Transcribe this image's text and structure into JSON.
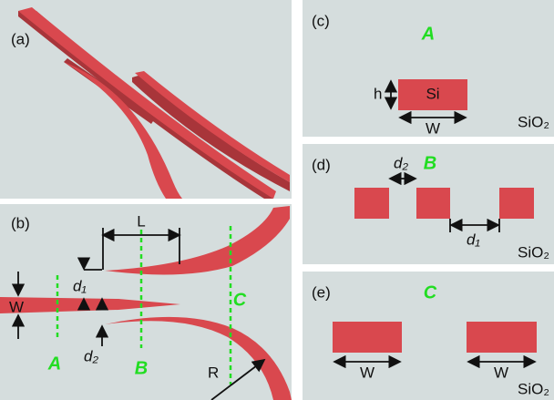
{
  "panels": {
    "a": {
      "label": "(a)"
    },
    "b": {
      "label": "(b)",
      "length_label": "L",
      "width_label": "W",
      "gap1_label": "d₁",
      "gap2_label": "d₂",
      "radius_label": "R",
      "section_labels": [
        "A",
        "B",
        "C"
      ]
    },
    "c": {
      "label": "(c)",
      "section": "A",
      "height_label": "h",
      "core_label": "Si",
      "width_label": "W",
      "substrate_label": "SiO₂"
    },
    "d": {
      "label": "(d)",
      "section": "B",
      "gap2_label": "d₂",
      "gap1_label": "d₁",
      "substrate_label": "SiO₂"
    },
    "e": {
      "label": "(e)",
      "section": "C",
      "width_labels": [
        "W",
        "W"
      ],
      "substrate_label": "SiO₂"
    }
  }
}
